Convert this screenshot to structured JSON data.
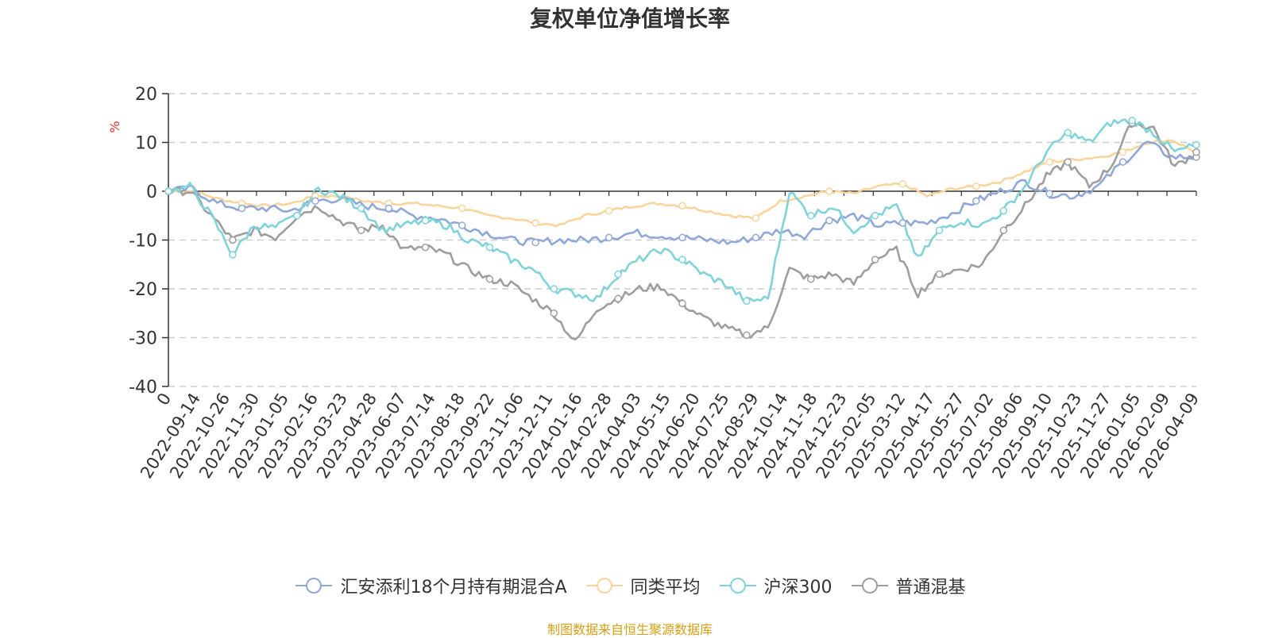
{
  "chart_data": {
    "type": "line",
    "title": "复权单位净值增长率",
    "ylabel": "%",
    "xlabel": "",
    "ylim": [
      -40,
      20
    ],
    "yticks": [
      "20",
      "10",
      "0",
      "-10",
      "-20",
      "-30",
      "-40"
    ],
    "x_tick_labels": [
      "0",
      "2022-09-14",
      "2022-10-26",
      "2022-11-30",
      "2023-01-05",
      "2023-02-16",
      "2023-03-23",
      "2023-04-28",
      "2023-06-07",
      "2023-07-14",
      "2023-08-18",
      "2023-09-22",
      "2023-11-06",
      "2023-12-11",
      "2024-01-16",
      "2024-02-28",
      "2024-04-03",
      "2024-05-15",
      "2024-06-20",
      "2024-07-25",
      "2024-08-29",
      "2024-10-14",
      "2024-11-18",
      "2024-12-23",
      "2025-02-05",
      "2025-03-12",
      "2025-04-17",
      "2025-05-27",
      "2025-07-02",
      "2025-08-06",
      "2025-09-10",
      "2025-10-23",
      "2025-11-27",
      "2026-01-05",
      "2026-02-09",
      "2026-04-09"
    ],
    "series": [
      {
        "name": "汇安添利18个月持有期混合A",
        "color": "#8fa8d8",
        "values": [
          0,
          0.5,
          -2.5,
          -3.5,
          -3.5,
          -4,
          -2,
          -1.5,
          -3,
          -3.5,
          -5,
          -5.5,
          -7,
          -8.5,
          -10,
          -10.5,
          -10,
          -10,
          -9.5,
          -8.5,
          -9,
          -9.5,
          -10,
          -10.5,
          -9.5,
          -8,
          -9,
          -6,
          -5,
          -7,
          -6.5,
          -6.5,
          -4.5,
          -2,
          0,
          2,
          -0.5,
          -1,
          1,
          6,
          10,
          7,
          7
        ]
      },
      {
        "name": "同类平均",
        "color": "#f9d59b",
        "values": [
          0,
          0,
          -1.5,
          -2.5,
          -3,
          -2.5,
          -1,
          -1,
          -2,
          -2.5,
          -2.5,
          -3,
          -3.5,
          -5,
          -5.5,
          -6.5,
          -7,
          -5,
          -4,
          -3,
          -2.5,
          -3,
          -4,
          -5,
          -5.5,
          -2,
          -1,
          0,
          -0.5,
          1,
          1.5,
          -1,
          0.5,
          1,
          2,
          4,
          6,
          6.5,
          7,
          8,
          10,
          10.5,
          8
        ]
      },
      {
        "name": "沪深300",
        "color": "#7fd3d9",
        "values": [
          0,
          1,
          -5,
          -13,
          -7,
          -7.5,
          -5,
          0.5,
          -1,
          -3.5,
          -8,
          -7,
          -6,
          -7,
          -10,
          -11.5,
          -14,
          -16,
          -20,
          -21,
          -22,
          -17,
          -14,
          -12,
          -14,
          -17,
          -19,
          -22.5,
          -22,
          0,
          -5,
          -3,
          -8,
          -5,
          -3,
          -14,
          -8,
          -6,
          -7,
          -4,
          1,
          8,
          12,
          10,
          14,
          14.5,
          12,
          8,
          9.5
        ]
      },
      {
        "name": "普通混基",
        "color": "#9e9e9e",
        "values": [
          0,
          0,
          -5,
          -10,
          -8,
          -9.5,
          -5,
          -3,
          -6,
          -8,
          -7,
          -12,
          -11.5,
          -13,
          -16,
          -18,
          -19,
          -22,
          -25,
          -31,
          -24,
          -22,
          -20,
          -19.5,
          -23,
          -26,
          -28,
          -29.5,
          -28,
          -16,
          -18,
          -17,
          -19,
          -14,
          -12,
          -21,
          -17,
          -16,
          -15,
          -8,
          -3,
          3,
          6,
          1,
          5,
          14,
          13,
          5,
          8
        ]
      }
    ]
  },
  "source_note": "制图数据来自恒生聚源数据库"
}
